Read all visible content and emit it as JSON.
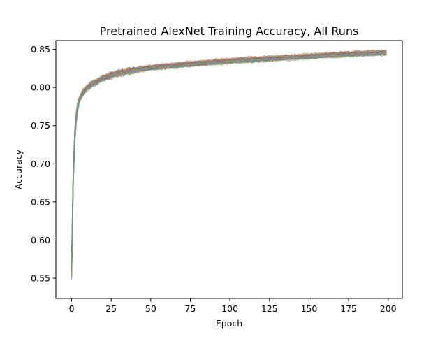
{
  "chart_data": {
    "type": "line",
    "title": "Pretrained AlexNet Training Accuracy, All Runs",
    "xlabel": "Epoch",
    "ylabel": "Accuracy",
    "xlim": [
      -9.95,
      208.95
    ],
    "ylim": [
      0.5235,
      0.8615
    ],
    "xticks": [
      0,
      25,
      50,
      75,
      100,
      125,
      150,
      175,
      200
    ],
    "xtick_labels": [
      "0",
      "25",
      "50",
      "75",
      "100",
      "125",
      "150",
      "175",
      "200"
    ],
    "yticks": [
      0.55,
      0.6,
      0.65,
      0.7,
      0.75,
      0.8,
      0.85
    ],
    "ytick_labels": [
      "0.55",
      "0.60",
      "0.65",
      "0.70",
      "0.75",
      "0.80",
      "0.85"
    ],
    "grid": false,
    "legend": "none",
    "epochs": {
      "start": 0,
      "end": 199
    },
    "mean_curve": {
      "x": [
        0,
        1,
        2,
        3,
        4,
        5,
        6,
        8,
        10,
        12,
        15,
        20,
        25,
        30,
        40,
        50,
        60,
        75,
        100,
        125,
        150,
        175,
        199
      ],
      "y": [
        0.56,
        0.68,
        0.735,
        0.762,
        0.776,
        0.784,
        0.789,
        0.796,
        0.8,
        0.803,
        0.807,
        0.812,
        0.816,
        0.819,
        0.823,
        0.826,
        0.828,
        0.831,
        0.835,
        0.838,
        0.841,
        0.844,
        0.846
      ]
    },
    "run_spread": 0.003,
    "series_colors": [
      "#1f77b4",
      "#ff7f0e",
      "#2ca02c",
      "#d62728",
      "#9467bd",
      "#8c564b",
      "#e377c2",
      "#7f7f7f",
      "#bcbd22",
      "#17becf"
    ],
    "runs_per_color": 4
  }
}
